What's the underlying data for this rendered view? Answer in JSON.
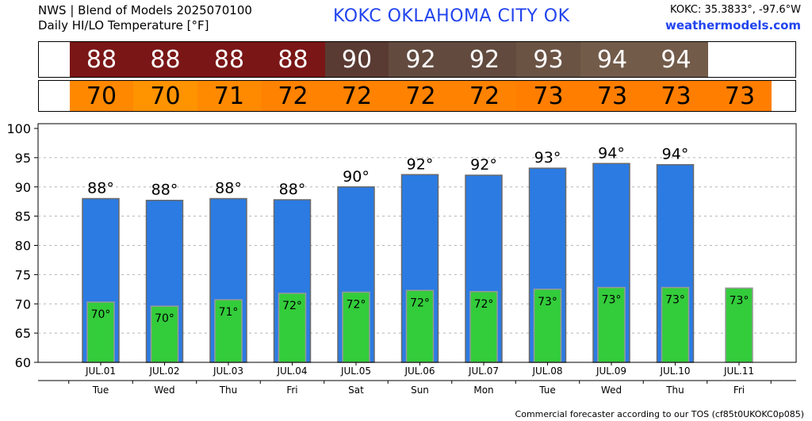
{
  "header": {
    "title_line1": "NWS | Blend of Models 2025070100",
    "title_line2": "Daily HI/LO Temperature [°F]",
    "station": "KOKC   OKLAHOMA CITY   OK",
    "coords": "KOKC: 35.3833°, -97.6°W",
    "site": "weathermodels.com"
  },
  "footer": "Commercial forecaster according to our TOS (cf85t0UKOKC0p085)",
  "colors": {
    "hi_bar": "#2b7be3",
    "lo_bar": "#33cc3b",
    "hi_strip_warm": "#7a1616",
    "hi_strip_hot": "#5c4535",
    "lo_strip": "#ff8c00"
  },
  "hi_strip": {
    "values": [
      "88",
      "88",
      "88",
      "88",
      "90",
      "92",
      "92",
      "93",
      "94",
      "94",
      ""
    ],
    "colors": [
      "#7a1616",
      "#7a1616",
      "#7a1616",
      "#7a1616",
      "#5a3b33",
      "#624a3e",
      "#624a3e",
      "#6b5344",
      "#735b4a",
      "#735b4a",
      "#ffffff"
    ]
  },
  "lo_strip": {
    "values": [
      "70",
      "70",
      "71",
      "72",
      "72",
      "72",
      "72",
      "73",
      "73",
      "73",
      "73"
    ],
    "colors": [
      "#ff8800",
      "#ff9300",
      "#ff8a00",
      "#ff8200",
      "#ff8200",
      "#ff8200",
      "#ff8200",
      "#ff7e00",
      "#ff7e00",
      "#ff7e00",
      "#ff7e00"
    ]
  },
  "chart_data": {
    "type": "bar",
    "categories": [
      "JUL.01",
      "JUL.02",
      "JUL.03",
      "JUL.04",
      "JUL.05",
      "JUL.06",
      "JUL.07",
      "JUL.08",
      "JUL.09",
      "JUL.10",
      "JUL.11"
    ],
    "days": [
      "Tue",
      "Wed",
      "Thu",
      "Fri",
      "Sat",
      "Sun",
      "Mon",
      "Tue",
      "Wed",
      "Thu",
      "Fri"
    ],
    "series": [
      {
        "values": [
          88,
          87.7,
          88,
          87.8,
          90,
          92.1,
          92,
          93.2,
          94,
          93.8,
          null
        ],
        "labels": [
          "88°",
          "88°",
          "88°",
          "88°",
          "90°",
          "92°",
          "92°",
          "93°",
          "94°",
          "94°",
          ""
        ]
      },
      {
        "values": [
          70.3,
          69.6,
          70.7,
          71.8,
          72,
          72.3,
          72.1,
          72.5,
          72.8,
          72.8,
          72.7
        ],
        "labels": [
          "70°",
          "70°",
          "71°",
          "72°",
          "72°",
          "72°",
          "72°",
          "73°",
          "73°",
          "73°",
          "73°"
        ]
      }
    ],
    "yticks": [
      "60",
      "65",
      "70",
      "75",
      "80",
      "85",
      "90",
      "95",
      "100"
    ],
    "ylim": [
      60,
      100
    ],
    "grid": true
  }
}
